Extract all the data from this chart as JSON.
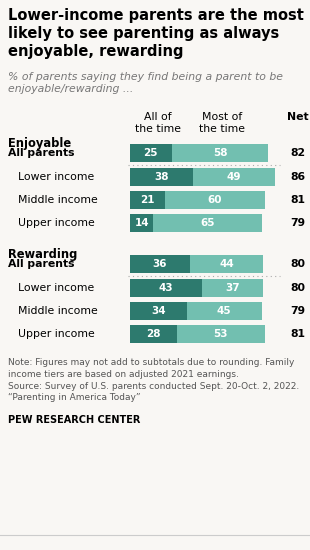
{
  "title": "Lower-income parents are the most\nlikely to see parenting as always\nenjoyable, rewarding",
  "subtitle": "% of parents saying they find being a parent to be\nenjoyable/rewarding ...",
  "col_header1": "All of\nthe time",
  "col_header2": "Most of\nthe time",
  "col_header3": "Net",
  "section1_label": "Enjoyable",
  "section2_label": "Rewarding",
  "rows": [
    {
      "label": "All parents",
      "val1": 25,
      "val2": 58,
      "net": 82,
      "bold": true,
      "section": 1
    },
    {
      "label": "Lower income",
      "val1": 38,
      "val2": 49,
      "net": 86,
      "bold": false,
      "section": 1
    },
    {
      "label": "Middle income",
      "val1": 21,
      "val2": 60,
      "net": 81,
      "bold": false,
      "section": 1
    },
    {
      "label": "Upper income",
      "val1": 14,
      "val2": 65,
      "net": 79,
      "bold": false,
      "section": 1
    },
    {
      "label": "All parents",
      "val1": 36,
      "val2": 44,
      "net": 80,
      "bold": true,
      "section": 2
    },
    {
      "label": "Lower income",
      "val1": 43,
      "val2": 37,
      "net": 80,
      "bold": false,
      "section": 2
    },
    {
      "label": "Middle income",
      "val1": 34,
      "val2": 45,
      "net": 79,
      "bold": false,
      "section": 2
    },
    {
      "label": "Upper income",
      "val1": 28,
      "val2": 53,
      "net": 81,
      "bold": false,
      "section": 2
    }
  ],
  "color_dark": "#2d7a6e",
  "color_light": "#72bfb0",
  "bar_max": 90,
  "note": "Note: Figures may not add to subtotals due to rounding. Family\nincome tiers are based on adjusted 2021 earnings.\nSource: Survey of U.S. parents conducted Sept. 20-Oct. 2, 2022.\n“Parenting in America Today”",
  "source_bold": "PEW RESEARCH CENTER",
  "bg_color": "#f9f7f4",
  "title_fontsize": 10.5,
  "subtitle_fontsize": 7.8,
  "label_fontsize": 7.8,
  "bar_fontsize": 7.5,
  "header_fontsize": 7.8,
  "note_fontsize": 6.5
}
